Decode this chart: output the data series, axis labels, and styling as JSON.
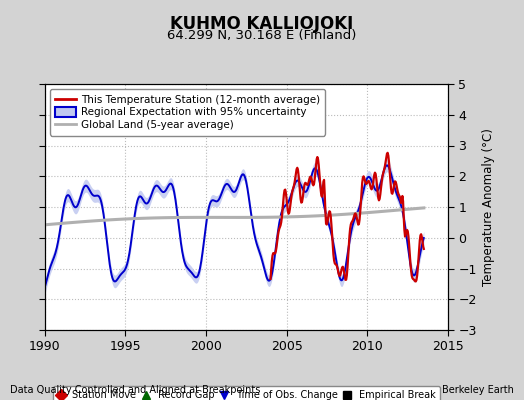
{
  "title": "KUHMO KALLIOJOKI",
  "subtitle": "64.299 N, 30.168 E (Finland)",
  "xlabel_left": "Data Quality Controlled and Aligned at Breakpoints",
  "xlabel_right": "Berkeley Earth",
  "ylabel": "Temperature Anomaly (°C)",
  "xlim": [
    1990,
    2015
  ],
  "ylim": [
    -3,
    5
  ],
  "yticks": [
    -3,
    -2,
    -1,
    0,
    1,
    2,
    3,
    4,
    5
  ],
  "xticks": [
    1990,
    1995,
    2000,
    2005,
    2010,
    2015
  ],
  "bg_color": "#d3d3d3",
  "plot_bg_color": "#ffffff",
  "grid_color": "#bbbbbb",
  "red_color": "#cc0000",
  "blue_color": "#0000cc",
  "blue_fill_color": "#c0c8f0",
  "gray_color": "#b0b0b0",
  "legend1_entries": [
    "This Temperature Station (12-month average)",
    "Regional Expectation with 95% uncertainty",
    "Global Land (5-year average)"
  ],
  "legend2_entries": [
    {
      "label": "Station Move",
      "marker": "D",
      "color": "#cc0000"
    },
    {
      "label": "Record Gap",
      "marker": "^",
      "color": "#006600"
    },
    {
      "label": "Time of Obs. Change",
      "marker": "v",
      "color": "#0000cc"
    },
    {
      "label": "Empirical Break",
      "marker": "s",
      "color": "#000000"
    }
  ]
}
